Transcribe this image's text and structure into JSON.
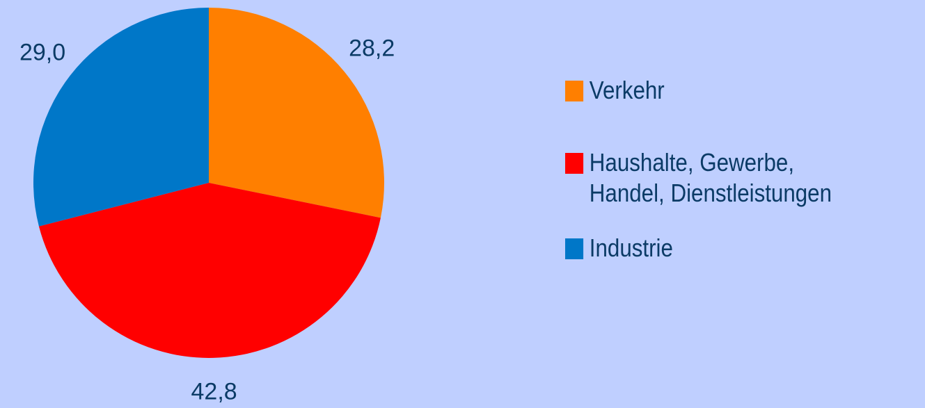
{
  "chart_data": {
    "type": "pie",
    "series": [
      {
        "name": "Verkehr",
        "color": "#ff7f00",
        "values": [
          28.2
        ],
        "value_labels": [
          "28,2"
        ]
      },
      {
        "name": "Haushalte, Gewerbe, Handel, Dienstleistungen",
        "color": "#ff0000",
        "values": [
          42.8
        ],
        "value_labels": [
          "42,8"
        ]
      },
      {
        "name": "Industrie",
        "color": "#0077c8",
        "values": [
          29.0
        ],
        "value_labels": [
          "29,0"
        ]
      }
    ]
  }
}
